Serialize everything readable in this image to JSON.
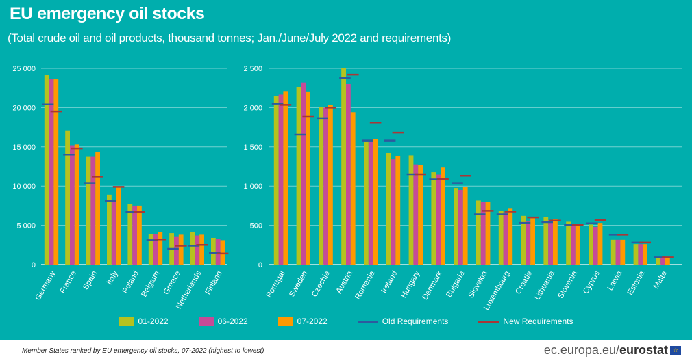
{
  "title": "EU emergency oil stocks",
  "subtitle": "(Total crude oil and oil products, thousand tonnes; Jan./June/July 2022 and requirements)",
  "footnote": "Member States ranked by EU emergency oil stocks, 07-2022 (highest to lowest)",
  "brand": {
    "prefix": "ec.europa.eu/",
    "name": "eurostat",
    "icon": "eu-flag-icon"
  },
  "colors": {
    "background": "#00AEAD",
    "s01": "#B5C21F",
    "s06": "#C64B97",
    "s07": "#FF9900",
    "old": "#2E5A9E",
    "new": "#A83737"
  },
  "legend": [
    "01-2022",
    "06-2022",
    "07-2022",
    "Old Requirements",
    "New Requirements"
  ],
  "chart_data": [
    {
      "type": "bar",
      "ylim": [
        0,
        25000
      ],
      "yticks": [
        "0",
        "5 000",
        "10 000",
        "15 000",
        "20 000",
        "25 000"
      ],
      "ytick_values": [
        0,
        5000,
        10000,
        15000,
        20000,
        25000
      ],
      "grid": true,
      "categories": [
        "Germany",
        "France",
        "Spain",
        "Italy",
        "Poland",
        "Belgium",
        "Greece",
        "Netherlands",
        "Finland"
      ],
      "series": [
        {
          "name": "01-2022",
          "values": [
            24200,
            17100,
            13800,
            8900,
            7700,
            3900,
            4000,
            4100,
            3400
          ]
        },
        {
          "name": "06-2022",
          "values": [
            23600,
            15200,
            13800,
            8100,
            7500,
            3900,
            3600,
            3700,
            3300
          ]
        },
        {
          "name": "07-2022",
          "values": [
            23600,
            15300,
            14300,
            9900,
            7500,
            4100,
            3800,
            3800,
            3100
          ]
        }
      ],
      "markers": [
        {
          "name": "Old Requirements",
          "values": [
            20400,
            14000,
            10400,
            8100,
            6700,
            3100,
            2000,
            2400,
            1500
          ]
        },
        {
          "name": "New Requirements",
          "values": [
            19500,
            14800,
            11200,
            9900,
            6700,
            3200,
            2400,
            2500,
            1400
          ]
        }
      ]
    },
    {
      "type": "bar",
      "ylim": [
        0,
        2500
      ],
      "yticks": [
        "0",
        "500",
        "1 000",
        "1 500",
        "2 000",
        "2 500"
      ],
      "ytick_values": [
        0,
        500,
        1000,
        1500,
        2000,
        2500
      ],
      "grid": true,
      "categories": [
        "Portugal",
        "Sweden",
        "Czechia",
        "Austria",
        "Romania",
        "Ireland",
        "Hungary",
        "Denmark",
        "Bulgaria",
        "Slovakia",
        "Luxembourg",
        "Croatia",
        "Lithuania",
        "Slovenia",
        "Cyprus",
        "Latvia",
        "Estonia",
        "Malta"
      ],
      "series": [
        {
          "name": "01-2022",
          "values": [
            2150,
            2265,
            2010,
            2500,
            1560,
            1420,
            1390,
            1175,
            975,
            815,
            680,
            620,
            605,
            545,
            510,
            315,
            260,
            80
          ]
        },
        {
          "name": "06-2022",
          "values": [
            2165,
            2320,
            2000,
            2300,
            1560,
            1340,
            1275,
            1145,
            950,
            795,
            665,
            555,
            565,
            510,
            480,
            315,
            260,
            80
          ]
        },
        {
          "name": "07-2022",
          "values": [
            2210,
            2205,
            2030,
            1940,
            1600,
            1385,
            1270,
            1235,
            985,
            795,
            720,
            590,
            580,
            515,
            530,
            315,
            260,
            85
          ]
        }
      ],
      "markers": [
        {
          "name": "Old Requirements",
          "values": [
            2050,
            1655,
            1865,
            2380,
            1580,
            1580,
            1150,
            1085,
            1040,
            640,
            640,
            530,
            540,
            505,
            525,
            380,
            280,
            93
          ]
        },
        {
          "name": "New Requirements",
          "values": [
            2035,
            1890,
            2000,
            2420,
            1810,
            1680,
            1150,
            1090,
            1130,
            685,
            675,
            600,
            560,
            505,
            565,
            380,
            280,
            93
          ]
        }
      ]
    }
  ]
}
